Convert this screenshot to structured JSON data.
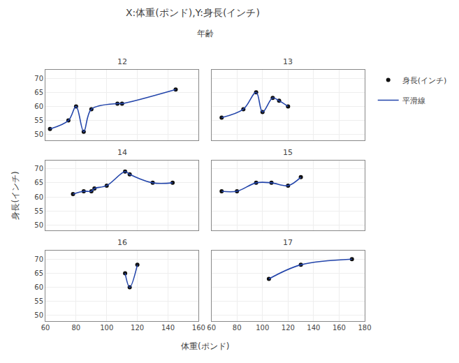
{
  "chart_data": {
    "type": "scatter",
    "title": "X:体重(ポンド),Y:身長(インチ)",
    "subtitle": "年齢",
    "xlabel": "体重(ポンド)",
    "ylabel": "身長(インチ)",
    "grid": true,
    "legend": "upper right",
    "ylim": [
      48,
      73
    ],
    "yticks": [
      50,
      55,
      60,
      65,
      70
    ],
    "panels": [
      {
        "title": "12",
        "xlim": [
          60,
          160
        ],
        "xticks": [
          60,
          80,
          100,
          120,
          140,
          160
        ],
        "tick_labels": "y",
        "series": [
          {
            "name": "身長(インチ)",
            "type": "scatter",
            "marker": "circle",
            "color": "#111111",
            "x": [
              63,
              75,
              80,
              85,
              90,
              107,
              110,
              145
            ],
            "values": [
              52,
              55,
              60,
              51,
              59,
              61,
              61,
              66
            ]
          },
          {
            "name": "平滑線",
            "type": "line",
            "line_style": "solid",
            "color": "#2244aa",
            "x": [
              63,
              75,
              80,
              85,
              90,
              107,
              110,
              145
            ],
            "values": [
              52,
              55,
              60,
              51,
              59,
              61,
              61,
              66
            ]
          }
        ]
      },
      {
        "title": "13",
        "xlim": [
          60,
          180
        ],
        "xticks": [
          60,
          80,
          100,
          120,
          140,
          160,
          180
        ],
        "tick_labels": false,
        "series": [
          {
            "name": "身長(インチ)",
            "type": "scatter",
            "marker": "circle",
            "color": "#111111",
            "x": [
              68,
              85,
              95,
              100,
              108,
              113,
              120
            ],
            "values": [
              56,
              59,
              65,
              58,
              63,
              62,
              60
            ]
          },
          {
            "name": "平滑線",
            "type": "line",
            "line_style": "solid",
            "color": "#2244aa",
            "x": [
              68,
              85,
              95,
              100,
              108,
              113,
              120
            ],
            "values": [
              56,
              59,
              65,
              58,
              63,
              62,
              60
            ]
          }
        ]
      },
      {
        "title": "14",
        "xlim": [
          60,
          160
        ],
        "xticks": [
          60,
          80,
          100,
          120,
          140,
          160
        ],
        "tick_labels": "y",
        "series": [
          {
            "name": "身長(インチ)",
            "type": "scatter",
            "marker": "circle",
            "color": "#111111",
            "x": [
              78,
              85,
              90,
              92,
              100,
              112,
              115,
              130,
              143
            ],
            "values": [
              61,
              62,
              62,
              63,
              64,
              69,
              68,
              65,
              65
            ]
          },
          {
            "name": "平滑線",
            "type": "line",
            "line_style": "solid",
            "color": "#2244aa",
            "x": [
              78,
              85,
              90,
              92,
              100,
              112,
              115,
              130,
              143
            ],
            "values": [
              61,
              62,
              62,
              63,
              64,
              69,
              68,
              65,
              65
            ]
          }
        ]
      },
      {
        "title": "15",
        "xlim": [
          60,
          180
        ],
        "xticks": [
          60,
          80,
          100,
          120,
          140,
          160,
          180
        ],
        "tick_labels": false,
        "series": [
          {
            "name": "身長(インチ)",
            "type": "scatter",
            "marker": "circle",
            "color": "#111111",
            "x": [
              68,
              80,
              95,
              107,
              120,
              130
            ],
            "values": [
              62,
              62,
              65,
              65,
              64,
              67
            ]
          },
          {
            "name": "平滑線",
            "type": "line",
            "line_style": "solid",
            "color": "#2244aa",
            "x": [
              68,
              80,
              95,
              107,
              120,
              130
            ],
            "values": [
              62,
              62,
              65,
              65,
              64,
              67
            ]
          }
        ]
      },
      {
        "title": "16",
        "xlim": [
          60,
          160
        ],
        "xticks": [
          60,
          80,
          100,
          120,
          140,
          160
        ],
        "series": [
          {
            "name": "身長(インチ)",
            "type": "scatter",
            "marker": "circle",
            "color": "#111111",
            "x": [
              112,
              115,
              120
            ],
            "values": [
              65,
              60,
              68
            ]
          },
          {
            "name": "平滑線",
            "type": "line",
            "line_style": "solid",
            "color": "#2244aa",
            "x": [
              112,
              115,
              120
            ],
            "values": [
              65,
              60,
              68
            ]
          }
        ]
      },
      {
        "title": "17",
        "xlim": [
          60,
          180
        ],
        "xticks": [
          60,
          80,
          100,
          120,
          140,
          160,
          180
        ],
        "tick_labels": "x",
        "series": [
          {
            "name": "身長(インチ)",
            "type": "scatter",
            "marker": "circle",
            "color": "#111111",
            "x": [
              105,
              130,
              170
            ],
            "values": [
              63,
              68,
              70
            ]
          },
          {
            "name": "平滑線",
            "type": "line",
            "line_style": "solid",
            "color": "#2244aa",
            "x": [
              105,
              130,
              170
            ],
            "values": [
              63,
              68,
              70
            ]
          }
        ]
      }
    ]
  }
}
